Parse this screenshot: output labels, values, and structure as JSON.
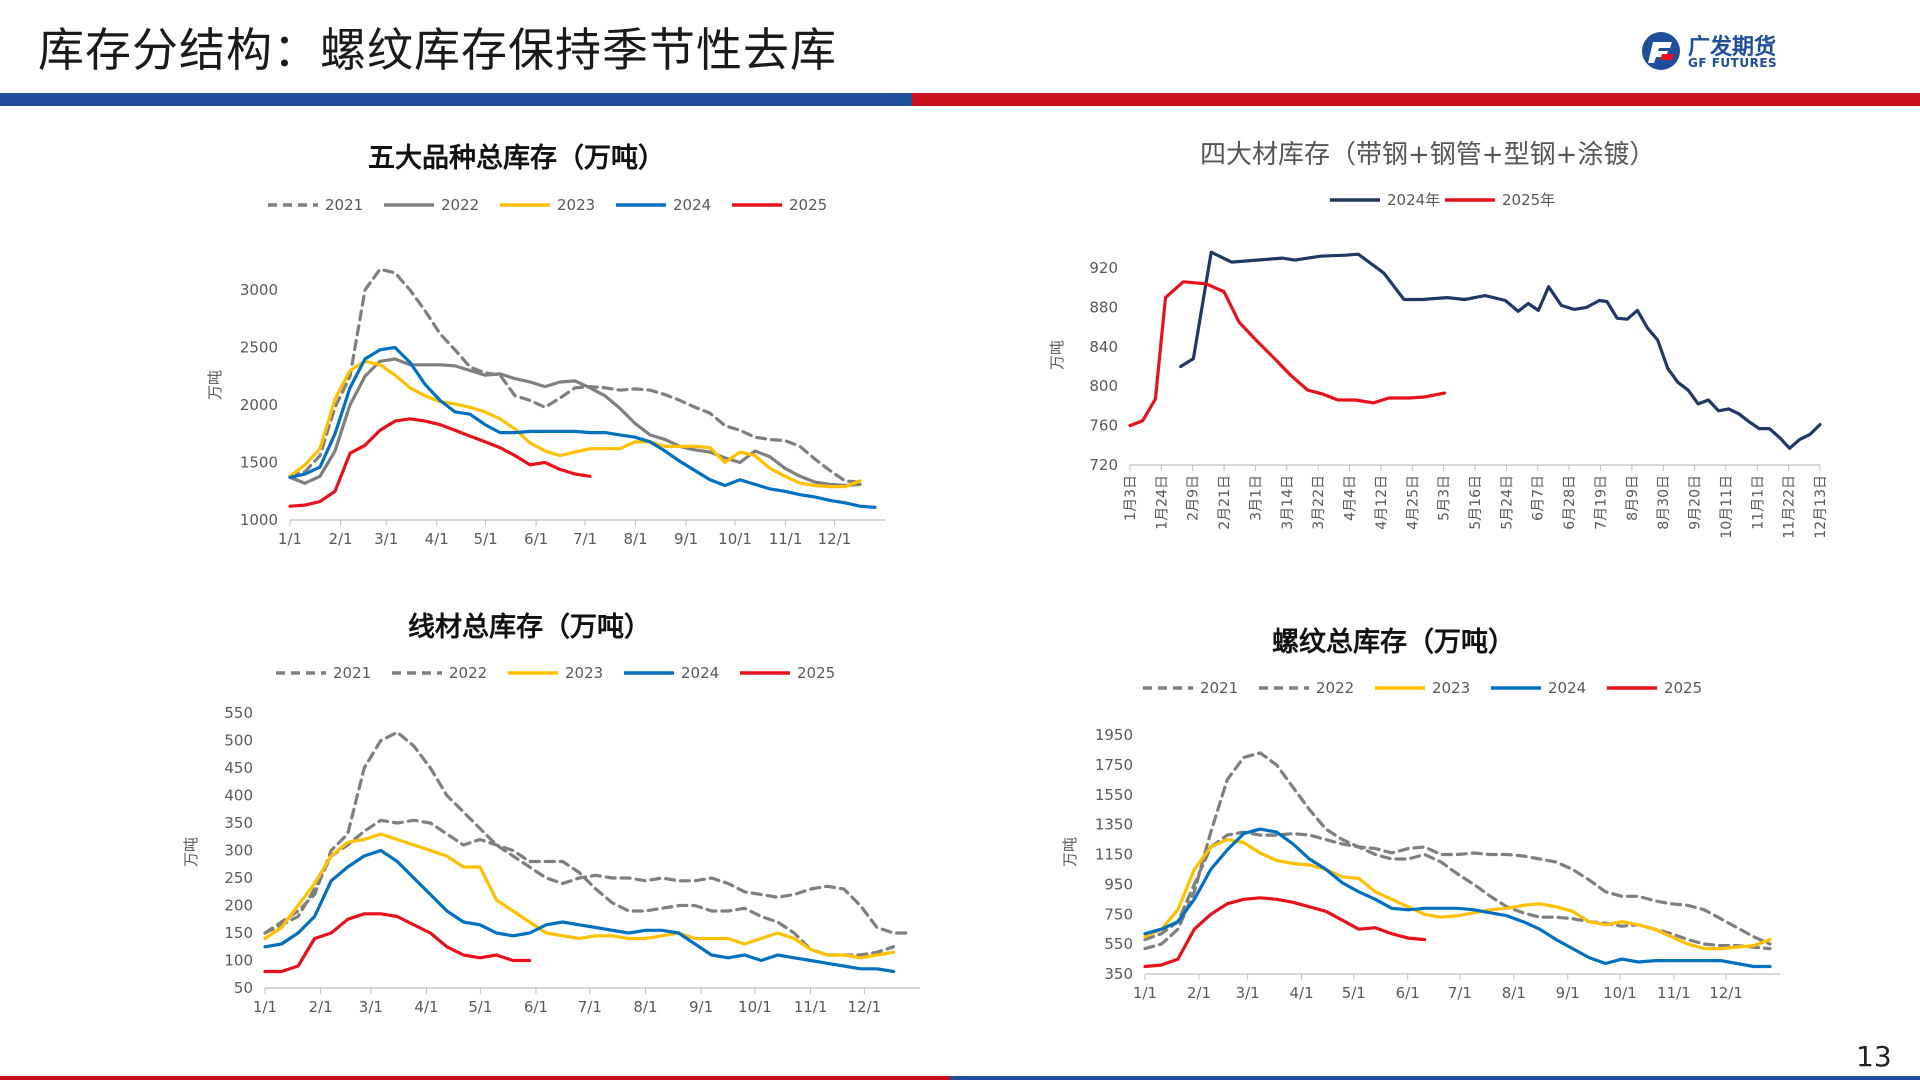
{
  "page": {
    "title": "库存分结构：螺纹库存保持季节性去库",
    "page_number": "13"
  },
  "logo": {
    "name": "广发期货",
    "sub": "GF FUTURES"
  },
  "colors": {
    "2021": "#7f7f7f",
    "2022": "#7f7f7f",
    "2023": "#ffc000",
    "2024": "#0070c0",
    "2025": "#e8111b",
    "2024年": "#1f3864",
    "2025年": "#e8111b"
  },
  "chart_data": [
    {
      "type": "line",
      "title": "五大品种总库存（万吨）",
      "ylabel": "万吨",
      "ylim": [
        1000,
        3000
      ],
      "yticks": [
        1000,
        1500,
        2000,
        2500,
        3000
      ],
      "xticks": [
        "1/1",
        "2/1",
        "3/1",
        "4/1",
        "5/1",
        "6/1",
        "7/1",
        "8/1",
        "9/1",
        "10/1",
        "11/1",
        "12/1"
      ],
      "legend": "top",
      "series": [
        {
          "name": "2021",
          "dash": true,
          "values": [
            1380,
            1420,
            1560,
            1980,
            2250,
            3000,
            3180,
            3150,
            3000,
            2820,
            2620,
            2480,
            2330,
            2280,
            2260,
            2080,
            2040,
            1980,
            2060,
            2150,
            2160,
            2150,
            2130,
            2140,
            2130,
            2090,
            2040,
            1980,
            1930,
            1820,
            1780,
            1720,
            1700,
            1690,
            1640,
            1530,
            1430,
            1340,
            1330
          ]
        },
        {
          "name": "2022",
          "dash": false,
          "values": [
            1370,
            1320,
            1380,
            1600,
            2000,
            2250,
            2380,
            2400,
            2350,
            2350,
            2350,
            2340,
            2300,
            2260,
            2270,
            2230,
            2200,
            2160,
            2200,
            2210,
            2150,
            2080,
            1970,
            1840,
            1740,
            1700,
            1640,
            1610,
            1590,
            1540,
            1500,
            1600,
            1550,
            1450,
            1380,
            1330,
            1310,
            1300,
            1310
          ]
        },
        {
          "name": "2023",
          "dash": false,
          "values": [
            1380,
            1480,
            1620,
            2050,
            2300,
            2380,
            2350,
            2260,
            2150,
            2080,
            2030,
            2010,
            1980,
            1940,
            1880,
            1790,
            1670,
            1600,
            1560,
            1590,
            1620,
            1620,
            1620,
            1680,
            1680,
            1640,
            1640,
            1640,
            1630,
            1500,
            1590,
            1560,
            1450,
            1380,
            1320,
            1300,
            1290,
            1290,
            1340
          ]
        },
        {
          "name": "2024",
          "dash": false,
          "values": [
            1370,
            1400,
            1460,
            1750,
            2150,
            2400,
            2480,
            2500,
            2370,
            2180,
            2040,
            1940,
            1920,
            1830,
            1760,
            1760,
            1770,
            1770,
            1770,
            1770,
            1760,
            1760,
            1740,
            1720,
            1680,
            1600,
            1510,
            1430,
            1350,
            1300,
            1350,
            1310,
            1270,
            1250,
            1220,
            1200,
            1170,
            1150,
            1120,
            1110
          ]
        },
        {
          "name": "2025",
          "dash": false,
          "values": [
            1120,
            1130,
            1160,
            1250,
            1580,
            1650,
            1780,
            1860,
            1880,
            1860,
            1830,
            1780,
            1730,
            1680,
            1630,
            1560,
            1480,
            1500,
            1440,
            1400,
            1380
          ]
        }
      ]
    },
    {
      "type": "line",
      "title": "四大材库存（带钢+钢管+型钢+涂镀）",
      "ylabel": "万吨",
      "ylim": [
        720,
        920
      ],
      "yticks": [
        720,
        760,
        800,
        840,
        880,
        920
      ],
      "xticks": [
        "1月3日",
        "1月24日",
        "2月9日",
        "2月21日",
        "3月1日",
        "3月14日",
        "3月22日",
        "4月4日",
        "4月12日",
        "4月25日",
        "5月3日",
        "5月16日",
        "5月24日",
        "6月7日",
        "6月28日",
        "7月19日",
        "8月9日",
        "8月30日",
        "9月20日",
        "10月11日",
        "11月1日",
        "11月22日",
        "12月13日"
      ],
      "legend": "top",
      "series": [
        {
          "name": "2024年",
          "values": [
            [
              2.0,
              820
            ],
            [
              2.5,
              828
            ],
            [
              3.2,
              936
            ],
            [
              4.0,
              926
            ],
            [
              5.0,
              928
            ],
            [
              6.0,
              930
            ],
            [
              6.5,
              928
            ],
            [
              7.5,
              932
            ],
            [
              8.5,
              933
            ],
            [
              9.0,
              934
            ],
            [
              10.0,
              915
            ],
            [
              10.8,
              888
            ],
            [
              11.5,
              888
            ],
            [
              12.5,
              890
            ],
            [
              13.2,
              888
            ],
            [
              14.0,
              892
            ],
            [
              14.8,
              887
            ],
            [
              15.3,
              876
            ],
            [
              15.7,
              884
            ],
            [
              16.1,
              877
            ],
            [
              16.5,
              901
            ],
            [
              17.0,
              882
            ],
            [
              17.5,
              878
            ],
            [
              18.0,
              880
            ],
            [
              18.5,
              887
            ],
            [
              18.8,
              886
            ],
            [
              19.2,
              869
            ],
            [
              19.6,
              868
            ],
            [
              20.0,
              877
            ],
            [
              20.4,
              859
            ],
            [
              20.8,
              847
            ],
            [
              21.2,
              818
            ],
            [
              21.6,
              804
            ],
            [
              22.0,
              796
            ],
            [
              22.4,
              782
            ],
            [
              22.8,
              786
            ],
            [
              23.2,
              775
            ],
            [
              23.6,
              777
            ],
            [
              24.0,
              772
            ],
            [
              24.4,
              764
            ],
            [
              24.8,
              757
            ],
            [
              25.2,
              757
            ],
            [
              25.6,
              748
            ],
            [
              26.0,
              737
            ],
            [
              26.4,
              746
            ],
            [
              26.8,
              751
            ],
            [
              27.2,
              761
            ]
          ]
        },
        {
          "name": "2025年",
          "values": [
            [
              0.0,
              760
            ],
            [
              0.5,
              765
            ],
            [
              1.0,
              787
            ],
            [
              1.4,
              890
            ],
            [
              2.1,
              906
            ],
            [
              3.0,
              904
            ],
            [
              3.7,
              896
            ],
            [
              4.3,
              865
            ],
            [
              5.0,
              846
            ],
            [
              5.7,
              828
            ],
            [
              6.3,
              812
            ],
            [
              7.0,
              796
            ],
            [
              7.6,
              792
            ],
            [
              8.2,
              786
            ],
            [
              8.9,
              786
            ],
            [
              9.6,
              783
            ],
            [
              10.2,
              788
            ],
            [
              11.0,
              788
            ],
            [
              11.6,
              789
            ],
            [
              12.4,
              793
            ]
          ]
        }
      ]
    },
    {
      "type": "line",
      "title": "线材总库存（万吨）",
      "ylabel": "万吨",
      "ylim": [
        50,
        550
      ],
      "yticks": [
        50,
        100,
        150,
        200,
        250,
        300,
        350,
        400,
        450,
        500,
        550
      ],
      "xticks": [
        "1/1",
        "2/1",
        "3/1",
        "4/1",
        "5/1",
        "6/1",
        "7/1",
        "8/1",
        "9/1",
        "10/1",
        "11/1",
        "12/1"
      ],
      "legend": "top",
      "series": [
        {
          "name": "2021",
          "dash": true,
          "values": [
            150,
            170,
            190,
            220,
            300,
            330,
            450,
            500,
            515,
            490,
            450,
            400,
            370,
            340,
            310,
            290,
            270,
            250,
            240,
            250,
            255,
            250,
            250,
            245,
            250,
            245,
            245,
            250,
            240,
            225,
            220,
            215,
            220,
            230,
            235,
            230,
            200,
            160,
            150,
            150
          ]
        },
        {
          "name": "2022",
          "dash": true,
          "values": [
            150,
            165,
            180,
            230,
            290,
            310,
            335,
            355,
            350,
            355,
            350,
            330,
            310,
            320,
            310,
            300,
            280,
            280,
            280,
            260,
            230,
            205,
            190,
            190,
            195,
            200,
            200,
            190,
            190,
            195,
            180,
            170,
            150,
            120,
            110,
            110,
            110,
            115,
            125
          ]
        },
        {
          "name": "2023",
          "dash": false,
          "values": [
            140,
            160,
            200,
            240,
            290,
            315,
            320,
            330,
            320,
            310,
            300,
            290,
            270,
            270,
            210,
            190,
            170,
            150,
            145,
            140,
            145,
            145,
            140,
            140,
            145,
            150,
            140,
            140,
            140,
            130,
            140,
            150,
            140,
            120,
            110,
            110,
            105,
            110,
            115
          ]
        },
        {
          "name": "2024",
          "dash": false,
          "values": [
            125,
            130,
            150,
            180,
            245,
            270,
            290,
            300,
            280,
            250,
            220,
            190,
            170,
            165,
            150,
            145,
            150,
            165,
            170,
            165,
            160,
            155,
            150,
            155,
            155,
            150,
            130,
            110,
            105,
            110,
            100,
            110,
            105,
            100,
            95,
            90,
            85,
            85,
            80
          ]
        },
        {
          "name": "2025",
          "dash": false,
          "values": [
            80,
            80,
            90,
            140,
            150,
            175,
            185,
            185,
            180,
            165,
            150,
            125,
            110,
            105,
            110,
            100,
            100
          ]
        }
      ]
    },
    {
      "type": "line",
      "title": "螺纹总库存（万吨）",
      "ylabel": "万吨",
      "ylim": [
        350,
        1950
      ],
      "yticks": [
        350,
        550,
        750,
        950,
        1150,
        1350,
        1550,
        1750,
        1950
      ],
      "xticks": [
        "1/1",
        "2/1",
        "3/1",
        "4/1",
        "5/1",
        "6/1",
        "7/1",
        "8/1",
        "9/1",
        "10/1",
        "11/1",
        "12/1"
      ],
      "legend": "top",
      "series": [
        {
          "name": "2021",
          "dash": true,
          "values": [
            520,
            550,
            650,
            900,
            1300,
            1650,
            1800,
            1830,
            1750,
            1600,
            1450,
            1320,
            1250,
            1200,
            1150,
            1120,
            1120,
            1150,
            1100,
            1020,
            950,
            870,
            800,
            760,
            730,
            730,
            720,
            700,
            690,
            670,
            680,
            650,
            620,
            580,
            550,
            540,
            540,
            530,
            520
          ]
        },
        {
          "name": "2022",
          "dash": true,
          "values": [
            580,
            620,
            700,
            950,
            1200,
            1280,
            1300,
            1280,
            1280,
            1290,
            1280,
            1250,
            1220,
            1200,
            1190,
            1160,
            1190,
            1200,
            1150,
            1150,
            1160,
            1150,
            1150,
            1140,
            1120,
            1100,
            1050,
            980,
            900,
            870,
            870,
            840,
            820,
            810,
            780,
            720,
            660,
            600,
            550
          ]
        },
        {
          "name": "2023",
          "dash": false,
          "values": [
            600,
            650,
            780,
            1050,
            1200,
            1250,
            1230,
            1160,
            1110,
            1090,
            1080,
            1050,
            1000,
            990,
            900,
            850,
            800,
            750,
            730,
            740,
            760,
            780,
            790,
            810,
            820,
            800,
            770,
            700,
            680,
            700,
            680,
            650,
            600,
            550,
            520,
            520,
            530,
            540,
            580
          ]
        },
        {
          "name": "2024",
          "dash": false,
          "values": [
            620,
            650,
            700,
            850,
            1050,
            1180,
            1290,
            1320,
            1300,
            1220,
            1120,
            1050,
            960,
            900,
            850,
            790,
            780,
            790,
            790,
            790,
            780,
            760,
            740,
            700,
            650,
            580,
            520,
            460,
            420,
            450,
            430,
            440,
            440,
            440,
            440,
            440,
            420,
            400,
            400
          ]
        },
        {
          "name": "2025",
          "dash": false,
          "values": [
            400,
            410,
            450,
            650,
            750,
            820,
            850,
            860,
            850,
            830,
            800,
            770,
            710,
            650,
            660,
            620,
            590,
            580
          ]
        }
      ]
    }
  ]
}
